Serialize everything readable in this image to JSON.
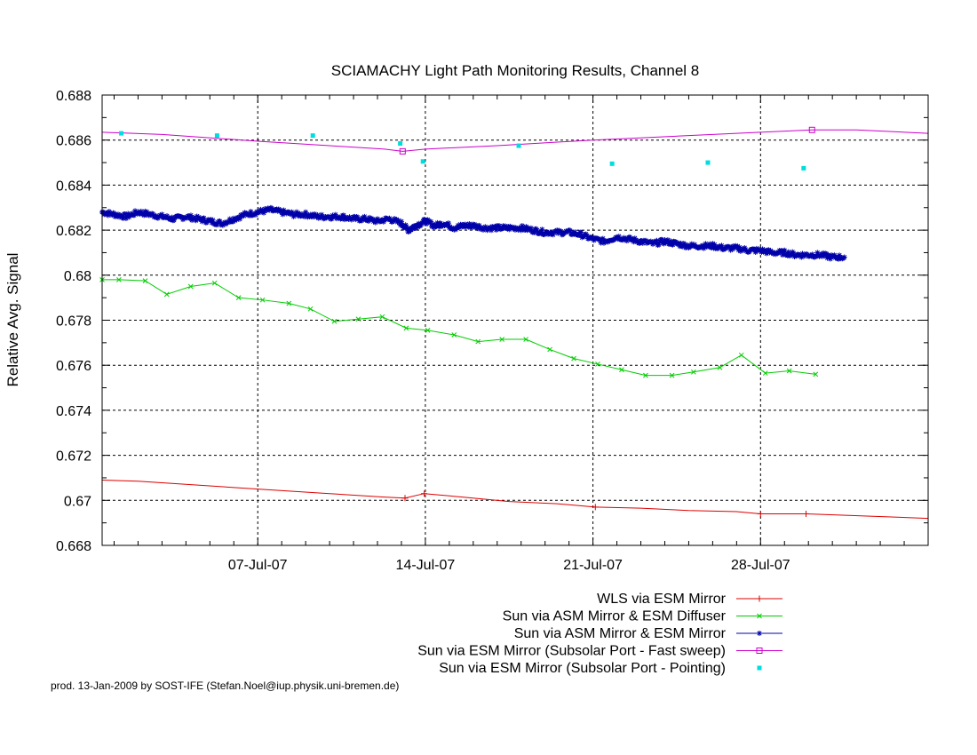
{
  "chart_data": {
    "type": "line",
    "title": "SCIAMACHY Light Path Monitoring Results, Channel 8",
    "xlabel": "",
    "ylabel": "Relative Avg. Signal",
    "xlim": [
      0.5,
      35.0
    ],
    "ylim": [
      0.668,
      0.688
    ],
    "x_unit": "days (1 = 01-Jul-07)",
    "x_ticks": [
      {
        "x": 7.0,
        "label": "07-Jul-07"
      },
      {
        "x": 14.0,
        "label": "14-Jul-07"
      },
      {
        "x": 21.0,
        "label": "21-Jul-07"
      },
      {
        "x": 28.0,
        "label": "28-Jul-07"
      }
    ],
    "y_ticks": [
      0.668,
      0.67,
      0.672,
      0.674,
      0.676,
      0.678,
      0.68,
      0.682,
      0.684,
      0.686,
      0.688
    ],
    "y_tick_labels": [
      "0.668",
      "0.67",
      "0.672",
      "0.674",
      "0.676",
      "0.678",
      "0.68",
      "0.682",
      "0.684",
      "0.686",
      "0.688"
    ],
    "grid": true,
    "legend_position": "bottom-right",
    "series": [
      {
        "name": "WLS via ESM Mirror",
        "color": "#dd0000",
        "marker": "plus",
        "line": true,
        "x": [
          0.5,
          2,
          7,
          10,
          12.2,
          13.15,
          13.95,
          15.5,
          17.5,
          19.5,
          21.1,
          23,
          25,
          27,
          28,
          29.9,
          35
        ],
        "y": [
          0.6709,
          0.67085,
          0.6705,
          0.6703,
          0.67015,
          0.6701,
          0.6703,
          0.67015,
          0.66995,
          0.66985,
          0.6697,
          0.66965,
          0.66955,
          0.6695,
          0.6694,
          0.6694,
          0.6692
        ],
        "marker_x": [
          13.15,
          13.95,
          21.1,
          28.0,
          29.9
        ],
        "marker_y": [
          0.6701,
          0.6703,
          0.6697,
          0.6694,
          0.6694
        ]
      },
      {
        "name": "Sun via ASM Mirror & ESM Diffuser",
        "color": "#00cc00",
        "marker": "cross",
        "line": true,
        "x": [
          0.5,
          1.2,
          2.3,
          3.2,
          4.2,
          5.2,
          6.2,
          7.2,
          8.3,
          9.2,
          10.2,
          11.2,
          12.2,
          13.2,
          14.1,
          15.2,
          16.2,
          17.2,
          18.2,
          19.2,
          20.2,
          21.2,
          22.2,
          23.2,
          24.3,
          25.2,
          26.3,
          27.2,
          28.2,
          29.2,
          30.3
        ],
        "y": [
          0.6798,
          0.6798,
          0.67975,
          0.67915,
          0.6795,
          0.67965,
          0.679,
          0.6789,
          0.67875,
          0.6785,
          0.67795,
          0.67805,
          0.67815,
          0.67765,
          0.67755,
          0.67735,
          0.67705,
          0.67715,
          0.67715,
          0.6767,
          0.6763,
          0.67605,
          0.6758,
          0.67555,
          0.67555,
          0.6757,
          0.6759,
          0.67645,
          0.67565,
          0.67575,
          0.6756
        ]
      },
      {
        "name": "Sun via ASM Mirror & ESM Mirror",
        "color": "#0000aa",
        "marker": "star",
        "line": true,
        "x": [
          0.5,
          1,
          1.5,
          2,
          2.5,
          3,
          3.5,
          4,
          4.5,
          5,
          5.5,
          6,
          6.5,
          7,
          7.5,
          8,
          8.5,
          9,
          9.5,
          10,
          10.5,
          11,
          11.5,
          12,
          12.5,
          13,
          13.3,
          13.6,
          14,
          14.4,
          14.8,
          15.2,
          15.6,
          16,
          16.5,
          17,
          17.5,
          18,
          18.5,
          19,
          19.5,
          20,
          20.5,
          21,
          21.5,
          22,
          22.5,
          23,
          23.5,
          24,
          24.5,
          25,
          25.5,
          26,
          26.5,
          27,
          27.5,
          28,
          28.5,
          29,
          29.5,
          30,
          30.5,
          31,
          31.5
        ],
        "y": [
          0.6828,
          0.6827,
          0.6826,
          0.6828,
          0.6827,
          0.6826,
          0.6825,
          0.6826,
          0.6825,
          0.6824,
          0.6823,
          0.6825,
          0.6827,
          0.6828,
          0.6829,
          0.6828,
          0.6827,
          0.6827,
          0.6826,
          0.6826,
          0.6826,
          0.6825,
          0.6825,
          0.6824,
          0.6825,
          0.6823,
          0.682,
          0.6822,
          0.6824,
          0.6822,
          0.6823,
          0.6821,
          0.6822,
          0.6822,
          0.6821,
          0.6821,
          0.6821,
          0.6821,
          0.682,
          0.6819,
          0.6819,
          0.6819,
          0.6818,
          0.6816,
          0.6815,
          0.6817,
          0.6816,
          0.6815,
          0.6814,
          0.6815,
          0.6814,
          0.6813,
          0.6813,
          0.6813,
          0.6812,
          0.6812,
          0.6811,
          0.6811,
          0.681,
          0.681,
          0.6809,
          0.6809,
          0.6809,
          0.6808,
          0.6808
        ]
      },
      {
        "name": "Sun via ESM Mirror (Subsolar Port - Fast sweep)",
        "color": "#cc00cc",
        "marker": "square",
        "line": true,
        "x": [
          0.5,
          3,
          7,
          10,
          12.3,
          13.05,
          14,
          17,
          21,
          25,
          28,
          30.15,
          32,
          35
        ],
        "y": [
          0.68635,
          0.68625,
          0.68595,
          0.68575,
          0.6856,
          0.6855,
          0.6856,
          0.68575,
          0.686,
          0.6862,
          0.68635,
          0.68645,
          0.68645,
          0.6863
        ],
        "marker_x": [
          13.05,
          30.15
        ],
        "marker_y": [
          0.6855,
          0.68645
        ]
      },
      {
        "name": "Sun via ESM Mirror (Subsolar Port - Pointing)",
        "color": "#00dddd",
        "marker": "dot",
        "line": false,
        "x": [
          1.3,
          5.3,
          9.3,
          12.95,
          13.9,
          17.9,
          21.8,
          25.8,
          29.8
        ],
        "y": [
          0.6863,
          0.6862,
          0.6862,
          0.68585,
          0.68505,
          0.68575,
          0.68495,
          0.685,
          0.68475
        ]
      }
    ]
  },
  "footer": "prod. 13-Jan-2009 by SOST-IFE (Stefan.Noel@iup.physik.uni-bremen.de)"
}
